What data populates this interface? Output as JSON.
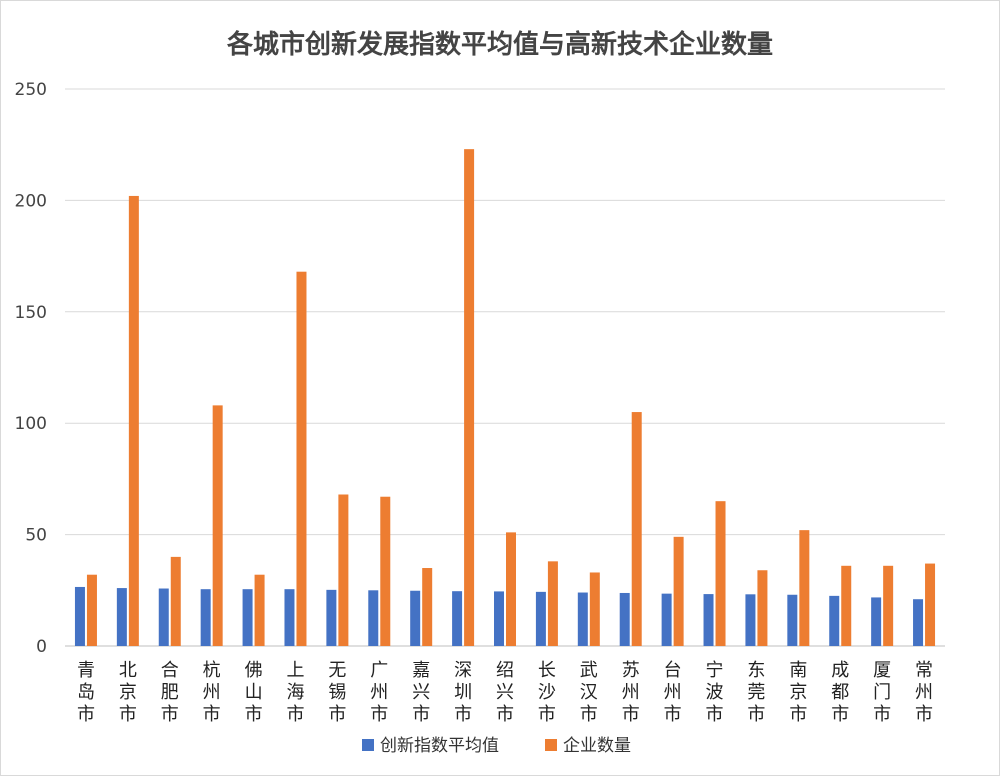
{
  "chart_data": {
    "type": "bar",
    "title": "各城市创新发展指数平均值与高新技术企业数量",
    "xlabel": "",
    "ylabel": "",
    "ylim": [
      0,
      250
    ],
    "yticks": [
      0,
      50,
      100,
      150,
      200,
      250
    ],
    "grid": true,
    "legend_position": "bottom",
    "categories": [
      "青岛市",
      "北京市",
      "合肥市",
      "杭州市",
      "佛山市",
      "上海市",
      "无锡市",
      "广州市",
      "嘉兴市",
      "深圳市",
      "绍兴市",
      "长沙市",
      "武汉市",
      "苏州市",
      "台州市",
      "宁波市",
      "东莞市",
      "南京市",
      "成都市",
      "厦门市",
      "常州市"
    ],
    "series": [
      {
        "name": "创新指数平均值",
        "color": "#4472c4",
        "values": [
          26.5,
          26,
          25.8,
          25.5,
          25.5,
          25.5,
          25.2,
          25,
          24.8,
          24.6,
          24.5,
          24.3,
          24,
          23.8,
          23.5,
          23.3,
          23.2,
          23,
          22.5,
          21.8,
          21
        ]
      },
      {
        "name": "企业数量",
        "color": "#ed7d31",
        "values": [
          32,
          202,
          40,
          108,
          32,
          168,
          68,
          67,
          35,
          223,
          51,
          38,
          33,
          105,
          49,
          65,
          34,
          52,
          36,
          36,
          37
        ]
      }
    ]
  }
}
